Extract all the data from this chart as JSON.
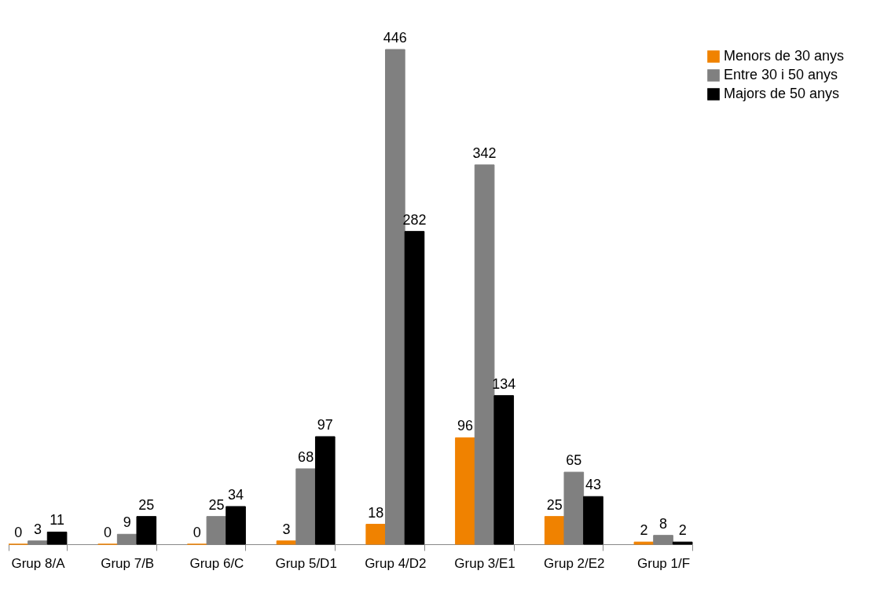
{
  "chart_data": {
    "type": "bar",
    "categories": [
      "Grup 8/A",
      "Grup 7/B",
      "Grup 6/C",
      "Grup 5/D1",
      "Grup 4/D2",
      "Grup 3/E1",
      "Grup 2/E2",
      "Grup 1/F"
    ],
    "series": [
      {
        "name": "Menors de 30 anys",
        "color": "#f08200",
        "values": [
          0,
          0,
          0,
          3,
          18,
          96,
          25,
          2
        ]
      },
      {
        "name": "Entre 30 i 50 anys",
        "color": "#808080",
        "values": [
          3,
          9,
          25,
          68,
          446,
          342,
          65,
          8
        ]
      },
      {
        "name": "Majors de 50 anys",
        "color": "#000000",
        "values": [
          11,
          25,
          34,
          97,
          282,
          134,
          43,
          2
        ]
      }
    ],
    "data_labels": true,
    "legend": "right",
    "grid": false
  }
}
